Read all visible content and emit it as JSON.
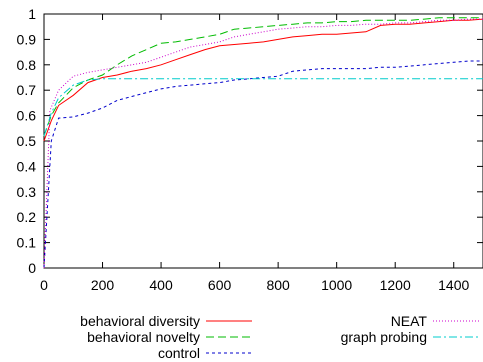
{
  "chart_data": {
    "type": "line",
    "title": "",
    "xlabel": "",
    "ylabel": "",
    "xlim": [
      0,
      1500
    ],
    "ylim": [
      0,
      1
    ],
    "xticks": [
      "0",
      "200",
      "400",
      "600",
      "800",
      "1000",
      "1200",
      "1400"
    ],
    "yticks": [
      "0",
      "0.1",
      "0.2",
      "0.3",
      "0.4",
      "0.5",
      "0.6",
      "0.7",
      "0.8",
      "0.9",
      "1"
    ],
    "grid": false,
    "legend": "bottom",
    "series": [
      {
        "name": "behavioral diversity",
        "color": "#ff0000",
        "dash": "solid",
        "x": [
          0,
          25,
          50,
          100,
          150,
          200,
          250,
          300,
          350,
          400,
          450,
          500,
          550,
          600,
          650,
          700,
          750,
          800,
          850,
          900,
          950,
          1000,
          1050,
          1100,
          1150,
          1200,
          1250,
          1300,
          1350,
          1400,
          1450,
          1500
        ],
        "y": [
          0.5,
          0.58,
          0.64,
          0.68,
          0.73,
          0.75,
          0.76,
          0.775,
          0.785,
          0.8,
          0.82,
          0.84,
          0.86,
          0.875,
          0.88,
          0.885,
          0.89,
          0.9,
          0.91,
          0.915,
          0.92,
          0.92,
          0.925,
          0.93,
          0.955,
          0.96,
          0.96,
          0.965,
          0.97,
          0.975,
          0.975,
          0.98
        ]
      },
      {
        "name": "behavioral novelty",
        "color": "#00bb00",
        "dash": "long-dash",
        "x": [
          0,
          25,
          50,
          100,
          150,
          200,
          250,
          300,
          350,
          400,
          450,
          500,
          550,
          600,
          650,
          700,
          750,
          800,
          850,
          900,
          950,
          1000,
          1050,
          1100,
          1150,
          1200,
          1250,
          1300,
          1350,
          1400,
          1450,
          1500
        ],
        "y": [
          0.52,
          0.6,
          0.65,
          0.71,
          0.74,
          0.76,
          0.8,
          0.835,
          0.86,
          0.885,
          0.89,
          0.9,
          0.91,
          0.92,
          0.94,
          0.945,
          0.95,
          0.955,
          0.96,
          0.965,
          0.965,
          0.97,
          0.97,
          0.975,
          0.975,
          0.975,
          0.975,
          0.98,
          0.985,
          0.985,
          0.985,
          0.985
        ]
      },
      {
        "name": "control",
        "color": "#0000cc",
        "dash": "short-dash",
        "x": [
          0,
          25,
          50,
          100,
          150,
          200,
          250,
          300,
          350,
          400,
          450,
          500,
          550,
          600,
          650,
          700,
          750,
          800,
          850,
          900,
          950,
          1000,
          1050,
          1100,
          1150,
          1200,
          1250,
          1300,
          1350,
          1400,
          1450,
          1500
        ],
        "y": [
          0.0,
          0.5,
          0.59,
          0.595,
          0.61,
          0.63,
          0.66,
          0.675,
          0.69,
          0.705,
          0.715,
          0.72,
          0.725,
          0.73,
          0.74,
          0.745,
          0.75,
          0.755,
          0.775,
          0.78,
          0.785,
          0.785,
          0.785,
          0.785,
          0.79,
          0.79,
          0.795,
          0.8,
          0.805,
          0.81,
          0.815,
          0.815
        ]
      },
      {
        "name": "NEAT",
        "color": "#cc00cc",
        "dash": "dotted",
        "x": [
          0,
          20,
          50,
          100,
          150,
          200,
          250,
          300,
          350,
          400,
          450,
          500,
          550,
          600,
          650,
          700,
          750,
          800,
          850,
          900,
          950,
          1000,
          1050,
          1100,
          1150,
          1200,
          1250,
          1300,
          1350,
          1400,
          1450,
          1500
        ],
        "y": [
          0.0,
          0.62,
          0.7,
          0.755,
          0.77,
          0.78,
          0.79,
          0.8,
          0.81,
          0.83,
          0.85,
          0.87,
          0.88,
          0.89,
          0.91,
          0.92,
          0.93,
          0.94,
          0.945,
          0.95,
          0.95,
          0.955,
          0.955,
          0.96,
          0.96,
          0.965,
          0.965,
          0.97,
          0.975,
          0.975,
          0.98,
          0.98
        ]
      },
      {
        "name": "graph probing",
        "color": "#00cccc",
        "dash": "dash-dot",
        "x": [
          0,
          25,
          50,
          100,
          150,
          200,
          300,
          400,
          600,
          800,
          1000,
          1200,
          1400,
          1500
        ],
        "y": [
          0.52,
          0.61,
          0.67,
          0.72,
          0.74,
          0.745,
          0.745,
          0.745,
          0.745,
          0.745,
          0.745,
          0.745,
          0.745,
          0.745
        ]
      }
    ]
  }
}
